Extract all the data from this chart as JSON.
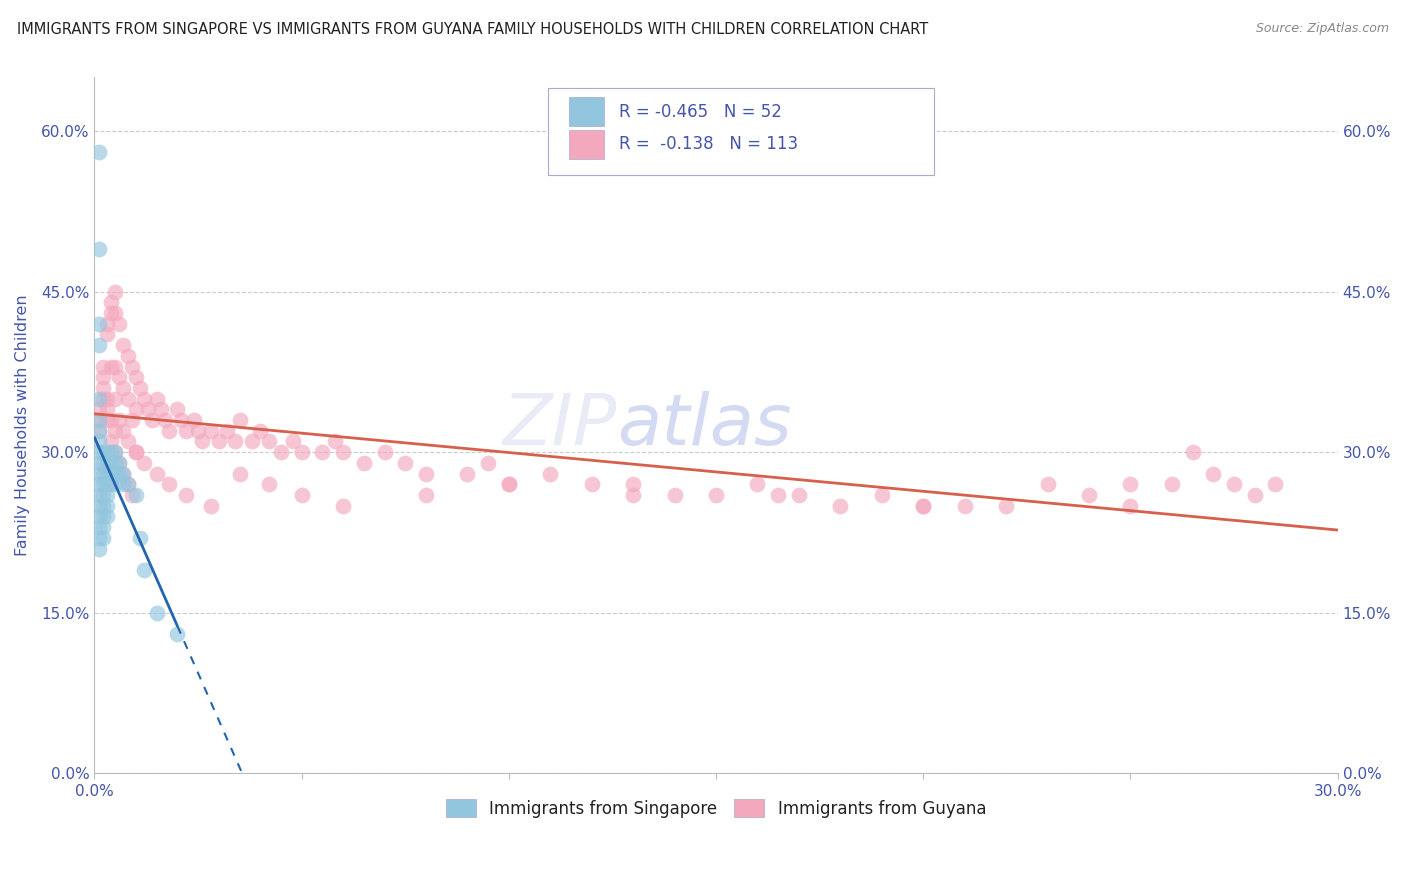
{
  "title": "IMMIGRANTS FROM SINGAPORE VS IMMIGRANTS FROM GUYANA FAMILY HOUSEHOLDS WITH CHILDREN CORRELATION CHART",
  "source": "Source: ZipAtlas.com",
  "ylabel": "Family Households with Children",
  "legend_label1": "Immigrants from Singapore",
  "legend_label2": "Immigrants from Guyana",
  "R1": -0.465,
  "N1": 52,
  "R2": -0.138,
  "N2": 113,
  "color1": "#92c5de",
  "color2": "#f4a8be",
  "line_color1": "#2166ac",
  "line_color2": "#d6604d",
  "xlim": [
    0.0,
    0.3
  ],
  "ylim": [
    0.0,
    0.65
  ],
  "yticks": [
    0.0,
    0.15,
    0.3,
    0.45,
    0.6
  ],
  "ytick_labels": [
    "0.0%",
    "15.0%",
    "30.0%",
    "45.0%",
    "60.0%"
  ],
  "xtick_labels_left": "0.0%",
  "xtick_labels_right": "30.0%",
  "background_color": "#ffffff",
  "grid_color": "#cccccc",
  "title_color": "#222222",
  "axis_label_color": "#4455aa",
  "tick_color": "#4455aa",
  "singapore_x": [
    0.001,
    0.001,
    0.001,
    0.001,
    0.001,
    0.001,
    0.001,
    0.001,
    0.001,
    0.001,
    0.001,
    0.001,
    0.001,
    0.001,
    0.001,
    0.001,
    0.001,
    0.001,
    0.002,
    0.002,
    0.002,
    0.002,
    0.002,
    0.002,
    0.002,
    0.002,
    0.002,
    0.003,
    0.003,
    0.003,
    0.003,
    0.003,
    0.003,
    0.003,
    0.004,
    0.004,
    0.004,
    0.004,
    0.005,
    0.005,
    0.005,
    0.005,
    0.006,
    0.006,
    0.007,
    0.007,
    0.008,
    0.01,
    0.011,
    0.012,
    0.015,
    0.02
  ],
  "singapore_y": [
    0.58,
    0.49,
    0.42,
    0.4,
    0.35,
    0.33,
    0.32,
    0.31,
    0.3,
    0.29,
    0.28,
    0.27,
    0.26,
    0.25,
    0.24,
    0.23,
    0.22,
    0.21,
    0.3,
    0.29,
    0.28,
    0.27,
    0.26,
    0.25,
    0.24,
    0.23,
    0.22,
    0.3,
    0.29,
    0.28,
    0.27,
    0.26,
    0.25,
    0.24,
    0.3,
    0.29,
    0.28,
    0.27,
    0.3,
    0.29,
    0.28,
    0.27,
    0.29,
    0.28,
    0.28,
    0.27,
    0.27,
    0.26,
    0.22,
    0.19,
    0.15,
    0.13
  ],
  "guyana_x": [
    0.001,
    0.001,
    0.001,
    0.002,
    0.002,
    0.002,
    0.003,
    0.003,
    0.003,
    0.003,
    0.004,
    0.004,
    0.004,
    0.004,
    0.005,
    0.005,
    0.005,
    0.005,
    0.005,
    0.006,
    0.006,
    0.006,
    0.007,
    0.007,
    0.007,
    0.008,
    0.008,
    0.008,
    0.009,
    0.009,
    0.01,
    0.01,
    0.01,
    0.011,
    0.012,
    0.013,
    0.014,
    0.015,
    0.016,
    0.017,
    0.018,
    0.02,
    0.021,
    0.022,
    0.024,
    0.025,
    0.026,
    0.028,
    0.03,
    0.032,
    0.034,
    0.035,
    0.038,
    0.04,
    0.042,
    0.045,
    0.048,
    0.05,
    0.055,
    0.058,
    0.06,
    0.065,
    0.07,
    0.075,
    0.08,
    0.09,
    0.095,
    0.1,
    0.11,
    0.12,
    0.13,
    0.14,
    0.15,
    0.16,
    0.17,
    0.18,
    0.19,
    0.2,
    0.21,
    0.22,
    0.23,
    0.24,
    0.25,
    0.26,
    0.265,
    0.002,
    0.003,
    0.004,
    0.005,
    0.006,
    0.007,
    0.008,
    0.009,
    0.01,
    0.012,
    0.015,
    0.018,
    0.022,
    0.028,
    0.035,
    0.042,
    0.05,
    0.06,
    0.08,
    0.1,
    0.13,
    0.165,
    0.2,
    0.25,
    0.27,
    0.275,
    0.28,
    0.285
  ],
  "guyana_y": [
    0.32,
    0.33,
    0.34,
    0.38,
    0.37,
    0.36,
    0.42,
    0.41,
    0.35,
    0.34,
    0.44,
    0.43,
    0.38,
    0.33,
    0.45,
    0.43,
    0.38,
    0.35,
    0.32,
    0.42,
    0.37,
    0.33,
    0.4,
    0.36,
    0.32,
    0.39,
    0.35,
    0.31,
    0.38,
    0.33,
    0.37,
    0.34,
    0.3,
    0.36,
    0.35,
    0.34,
    0.33,
    0.35,
    0.34,
    0.33,
    0.32,
    0.34,
    0.33,
    0.32,
    0.33,
    0.32,
    0.31,
    0.32,
    0.31,
    0.32,
    0.31,
    0.33,
    0.31,
    0.32,
    0.31,
    0.3,
    0.31,
    0.3,
    0.3,
    0.31,
    0.3,
    0.29,
    0.3,
    0.29,
    0.28,
    0.28,
    0.29,
    0.27,
    0.28,
    0.27,
    0.27,
    0.26,
    0.26,
    0.27,
    0.26,
    0.25,
    0.26,
    0.25,
    0.25,
    0.25,
    0.27,
    0.26,
    0.25,
    0.27,
    0.3,
    0.35,
    0.33,
    0.31,
    0.3,
    0.29,
    0.28,
    0.27,
    0.26,
    0.3,
    0.29,
    0.28,
    0.27,
    0.26,
    0.25,
    0.28,
    0.27,
    0.26,
    0.25,
    0.26,
    0.27,
    0.26,
    0.26,
    0.25,
    0.27,
    0.28,
    0.27,
    0.26,
    0.27
  ]
}
